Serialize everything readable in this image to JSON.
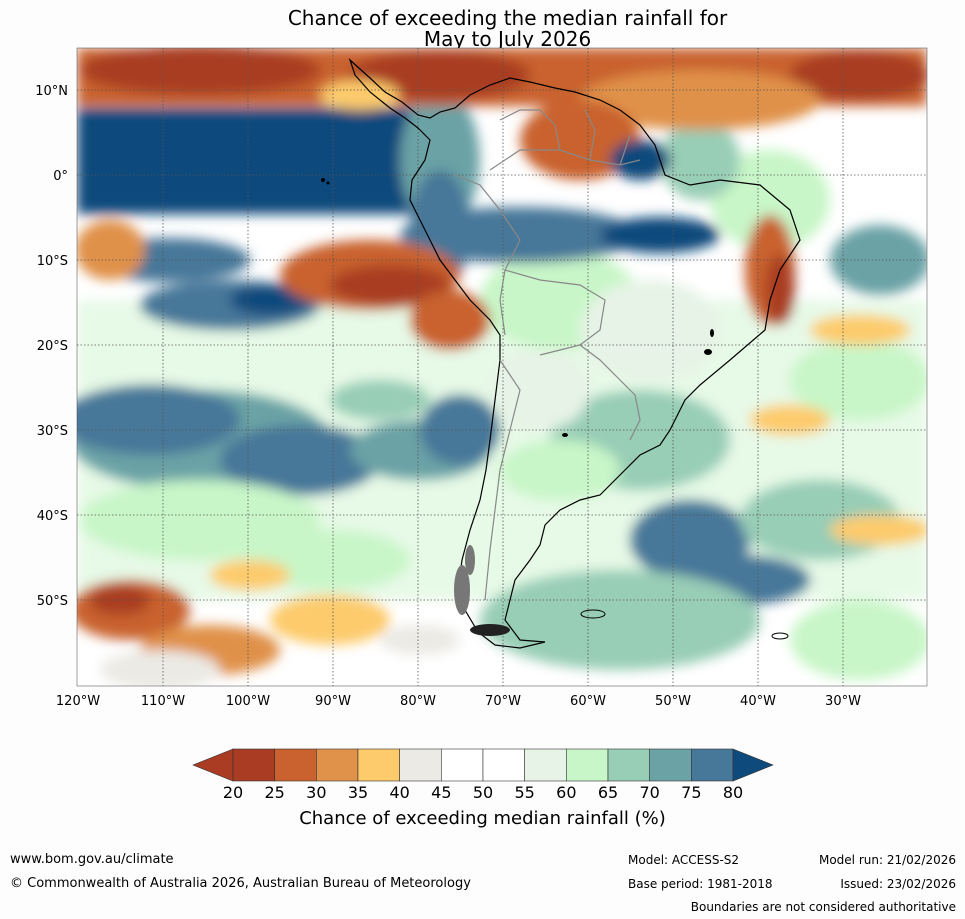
{
  "title": {
    "line1": "Chance of exceeding the median rainfall for",
    "line2": "May to July 2026"
  },
  "map": {
    "lat_labels": [
      "10°N",
      "0°",
      "10°S",
      "20°S",
      "30°S",
      "40°S",
      "50°S"
    ],
    "lon_labels": [
      "120°W",
      "110°W",
      "100°W",
      "90°W",
      "80°W",
      "70°W",
      "60°W",
      "50°W",
      "40°W",
      "30°W"
    ]
  },
  "colorbar": {
    "ticks": [
      "20",
      "25",
      "30",
      "35",
      "40",
      "45",
      "50",
      "55",
      "60",
      "65",
      "70",
      "75",
      "80"
    ],
    "colors": [
      "#a93c23",
      "#c9622f",
      "#e0914a",
      "#fdcb6c",
      "#ebeae5",
      "#ffffff",
      "#ffffff",
      "#e6f3e6",
      "#c8f6c8",
      "#98cdb6",
      "#6aa2a6",
      "#477799",
      "#0f4a7c"
    ],
    "below_color": "#a93c23",
    "above_color": "#0f4a7c",
    "title": "Chance of exceeding median rainfall (%)"
  },
  "footer": {
    "url": "www.bom.gov.au/climate",
    "copyright": "© Commonwealth of Australia 2026, Australian Bureau of Meteorology",
    "model": "Model: ACCESS-S2",
    "base_period": "Base period: 1981-2018",
    "model_run": "Model run: 21/02/2026",
    "issued": "Issued: 23/02/2026",
    "disclaimer": "Boundaries are not considered authoritative"
  }
}
